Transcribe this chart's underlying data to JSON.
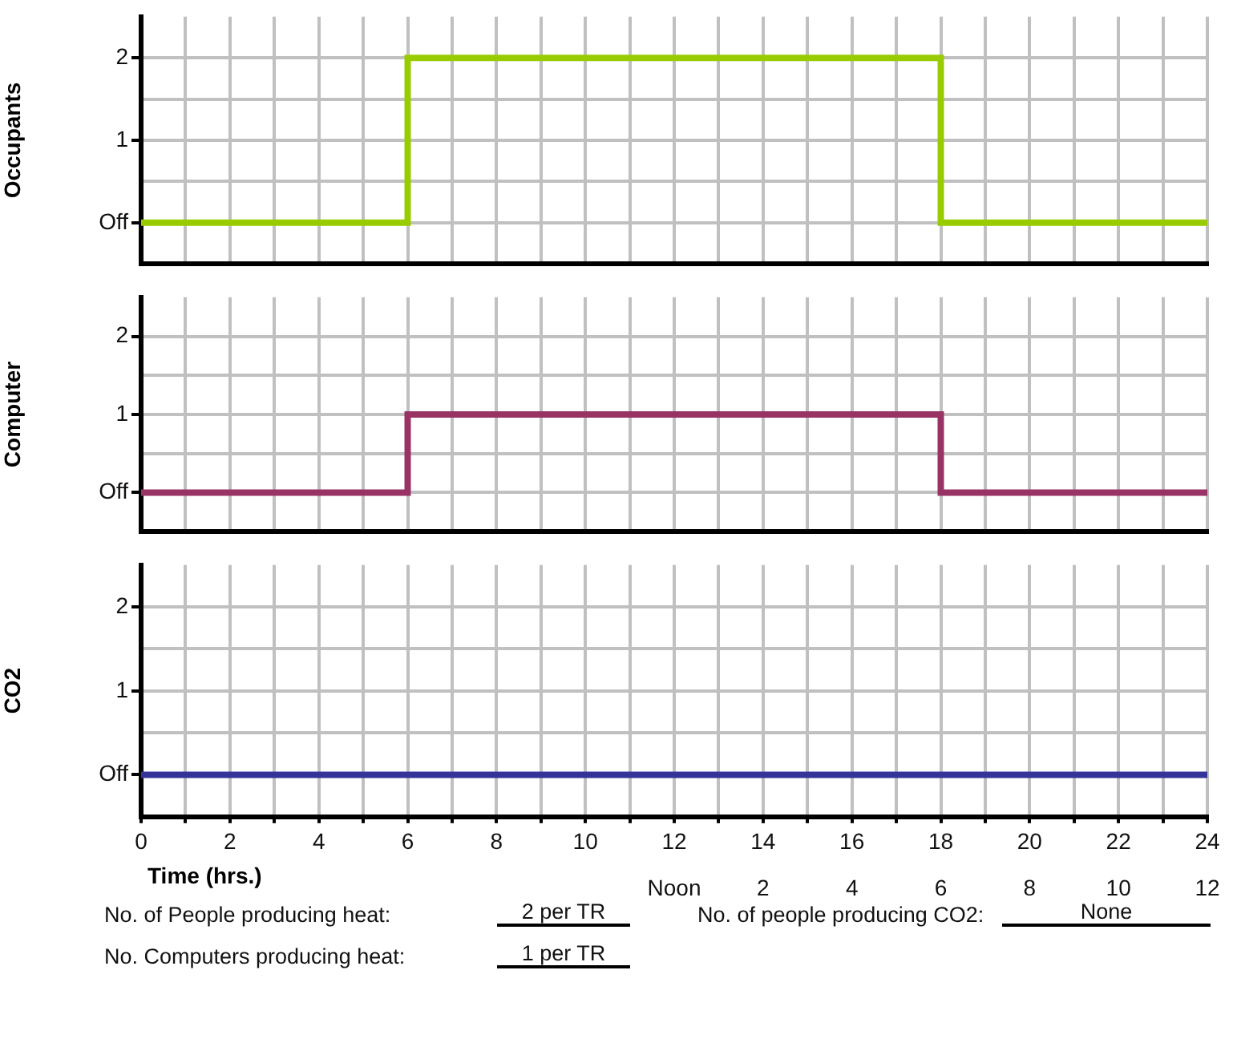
{
  "chart_data": [
    {
      "type": "step",
      "ylabel": "Occupants",
      "x": [
        0,
        6,
        18,
        24
      ],
      "series": [
        {
          "color": "#99cc00",
          "values": [
            0,
            2,
            0,
            0
          ]
        }
      ],
      "xlim": [
        0,
        24
      ],
      "xticks": [
        0,
        {
          "value": 1,
          "label": null
        },
        2,
        {
          "value": 3,
          "label": null
        },
        4,
        {
          "value": 5,
          "label": null
        },
        6,
        {
          "value": 7,
          "label": null
        },
        8,
        {
          "value": 9,
          "label": null
        },
        10,
        {
          "value": 11,
          "label": null
        },
        12,
        {
          "value": 13,
          "label": null
        },
        14,
        {
          "value": 15,
          "label": null
        },
        16,
        {
          "value": 17,
          "label": null
        },
        18,
        {
          "value": 19,
          "label": null
        },
        20,
        {
          "value": 21,
          "label": null
        },
        22,
        {
          "value": 23,
          "label": null
        },
        24
      ],
      "ylim": [
        -0.5,
        2.5
      ],
      "yticks": [
        {
          "value": 0,
          "label": "Off"
        },
        {
          "value": 0.5,
          "label": null
        },
        {
          "value": 1,
          "label": "1"
        },
        {
          "value": 1.5,
          "label": null
        },
        {
          "value": 2,
          "label": "2"
        }
      ],
      "grid": true,
      "tick_labels": "y",
      "legend": false
    },
    {
      "type": "step",
      "ylabel": "Computer",
      "x": [
        0,
        6,
        18,
        24
      ],
      "series": [
        {
          "color": "#993366",
          "values": [
            0,
            1,
            0,
            0
          ]
        }
      ],
      "xlim": [
        0,
        24
      ],
      "xticks": [
        0,
        {
          "value": 1,
          "label": null
        },
        2,
        {
          "value": 3,
          "label": null
        },
        4,
        {
          "value": 5,
          "label": null
        },
        6,
        {
          "value": 7,
          "label": null
        },
        8,
        {
          "value": 9,
          "label": null
        },
        10,
        {
          "value": 11,
          "label": null
        },
        12,
        {
          "value": 13,
          "label": null
        },
        14,
        {
          "value": 15,
          "label": null
        },
        16,
        {
          "value": 17,
          "label": null
        },
        18,
        {
          "value": 19,
          "label": null
        },
        20,
        {
          "value": 21,
          "label": null
        },
        22,
        {
          "value": 23,
          "label": null
        },
        24
      ],
      "ylim": [
        -0.5,
        2.5
      ],
      "yticks": [
        {
          "value": 0,
          "label": "Off"
        },
        {
          "value": 0.5,
          "label": null
        },
        {
          "value": 1,
          "label": "1"
        },
        {
          "value": 1.5,
          "label": null
        },
        {
          "value": 2,
          "label": "2"
        }
      ],
      "grid": true,
      "tick_labels": "y",
      "legend": false
    },
    {
      "type": "step",
      "ylabel": "CO2",
      "xlabel": "Time (hrs.)",
      "x": [
        0,
        24
      ],
      "series": [
        {
          "color": "#333399",
          "values": [
            0,
            0
          ]
        }
      ],
      "xlim": [
        0,
        24
      ],
      "xticks": [
        0,
        {
          "value": 1,
          "label": null
        },
        2,
        {
          "value": 3,
          "label": null
        },
        4,
        {
          "value": 5,
          "label": null
        },
        6,
        {
          "value": 7,
          "label": null
        },
        8,
        {
          "value": 9,
          "label": null
        },
        10,
        {
          "value": 11,
          "label": null
        },
        12,
        {
          "value": 13,
          "label": null
        },
        14,
        {
          "value": 15,
          "label": null
        },
        16,
        {
          "value": 17,
          "label": null
        },
        18,
        {
          "value": 19,
          "label": null
        },
        20,
        {
          "value": 21,
          "label": null
        },
        22,
        {
          "value": 23,
          "label": null
        },
        24
      ],
      "x2lim": [
        -12,
        12
      ],
      "x2ticks": [
        {
          "value": 0,
          "label": "Noon"
        },
        2,
        4,
        6,
        8,
        10,
        12
      ],
      "ylim": [
        -0.5,
        2.5
      ],
      "yticks": [
        {
          "value": 0,
          "label": "Off"
        },
        {
          "value": 0.5,
          "label": null
        },
        {
          "value": 1,
          "label": "1"
        },
        {
          "value": 1.5,
          "label": null
        },
        {
          "value": 2,
          "label": "2"
        }
      ],
      "grid": true,
      "legend": false,
      "annotations": [
        "No. of People producing heat:",
        "2 per TR",
        "No. of people producing CO2:",
        "None",
        "No. Computers producing heat:",
        "1 per TR"
      ]
    }
  ]
}
